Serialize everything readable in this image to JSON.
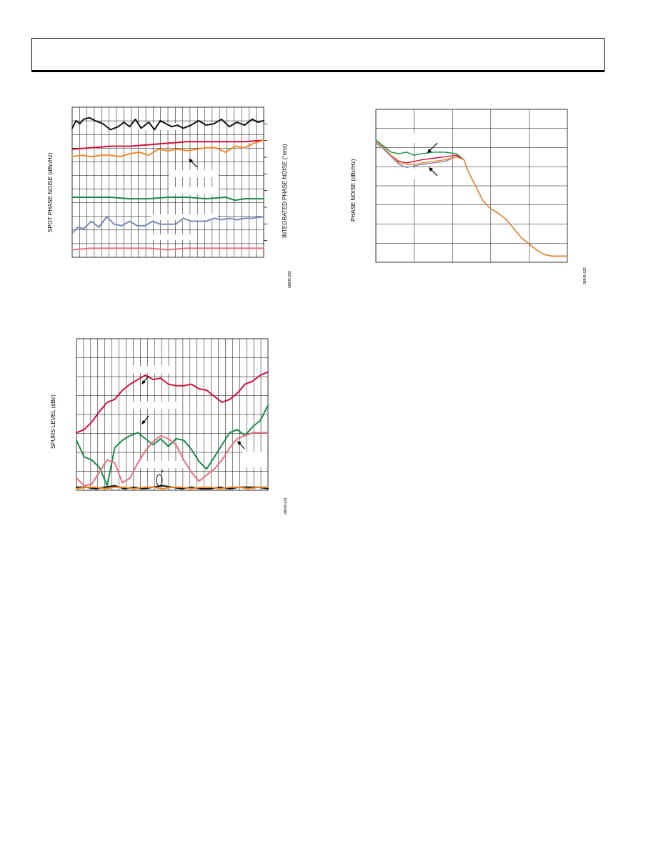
{
  "page": {
    "header_text": ""
  },
  "charts": [
    {
      "id": "chart1",
      "ylabel_left": "SPOT PHASE NOISE (dBc/Hz)",
      "ylabel_right": "INTEGRATED PHASE NOISE (°rms)",
      "figure_id": "08845-020"
    },
    {
      "id": "chart2",
      "ylabel": "PHASE NOISE (dBc/Hz)",
      "figure_id": "08845-022"
    },
    {
      "id": "chart3",
      "ylabel": "SPURS LEVEL (dBc)",
      "figure_id": "08845-021"
    }
  ],
  "chart_data": [
    {
      "type": "line",
      "title": "",
      "xlabel": "",
      "ylabel": "SPOT PHASE NOISE (dBc/Hz)",
      "ylabel_right": "INTEGRATED PHASE NOISE (°rms)",
      "xlim": [
        0,
        100
      ],
      "ylim": [
        0,
        100
      ],
      "grid": true,
      "colors": {
        "black": "#111111",
        "red": "#d0103a",
        "orange": "#f08a2a",
        "green": "#1a8a4a",
        "blue": "#7a8ab8",
        "pink": "#e8707e"
      },
      "series": [
        {
          "color": "#111111",
          "x": [
            0,
            2,
            4,
            6,
            9,
            12,
            16,
            20,
            24,
            27,
            30,
            33,
            36,
            40,
            43,
            46,
            49,
            52,
            55,
            58,
            62,
            66,
            70,
            74,
            78,
            82,
            86,
            90,
            94,
            97,
            100
          ],
          "y": [
            86,
            91,
            89,
            92,
            93,
            91,
            89,
            85,
            87,
            90,
            87,
            92,
            86,
            90,
            85,
            91,
            89,
            87,
            88,
            86,
            88,
            91,
            88,
            89,
            92,
            87,
            90,
            88,
            92,
            90,
            91
          ]
        },
        {
          "color": "#d0103a",
          "x": [
            0,
            10,
            20,
            30,
            40,
            50,
            60,
            70,
            80,
            90,
            100
          ],
          "y": [
            72,
            73,
            74,
            74,
            75,
            76,
            77,
            77,
            77,
            77,
            78
          ]
        },
        {
          "color": "#f08a2a",
          "x": [
            0,
            5,
            10,
            15,
            20,
            25,
            30,
            35,
            40,
            45,
            50,
            55,
            60,
            65,
            70,
            75,
            80,
            85,
            90,
            95,
            100
          ],
          "y": [
            67,
            68,
            67,
            68,
            68,
            67,
            69,
            70,
            68,
            72,
            71,
            72,
            71,
            72,
            73,
            73,
            70,
            74,
            73,
            76,
            78
          ]
        },
        {
          "color": "#1a8a4a",
          "x": [
            0,
            10,
            20,
            30,
            40,
            50,
            60,
            70,
            80,
            85,
            90,
            100
          ],
          "y": [
            40,
            40,
            40,
            39,
            39,
            40,
            40,
            39,
            40,
            38,
            39,
            39
          ]
        },
        {
          "color": "#7a8ab8",
          "x": [
            0,
            3,
            6,
            10,
            14,
            18,
            22,
            26,
            30,
            34,
            38,
            42,
            46,
            50,
            54,
            58,
            62,
            66,
            70,
            74,
            78,
            82,
            86,
            90,
            94,
            100
          ],
          "y": [
            16,
            20,
            19,
            24,
            20,
            27,
            22,
            21,
            24,
            21,
            21,
            24,
            22,
            22,
            22,
            26,
            24,
            24,
            24,
            26,
            25,
            26,
            25,
            26,
            26,
            27
          ]
        },
        {
          "color": "#e8707e",
          "x": [
            0,
            10,
            20,
            30,
            40,
            50,
            60,
            70,
            80,
            90,
            100
          ],
          "y": [
            5,
            6,
            6,
            6,
            6,
            5,
            6,
            6,
            6,
            6,
            6
          ]
        }
      ]
    },
    {
      "type": "line",
      "title": "",
      "xlabel": "",
      "ylabel": "PHASE NOISE (dBc/Hz)",
      "xlim": [
        0,
        100
      ],
      "ylim": [
        0,
        100
      ],
      "grid": true,
      "series": [
        {
          "color": "#1a8a4a",
          "x": [
            0,
            4,
            8,
            12,
            16,
            20,
            24,
            30,
            36,
            42,
            46,
            48,
            52,
            56,
            60,
            64,
            68,
            72,
            76,
            80,
            84,
            88,
            92,
            96,
            100
          ],
          "y": [
            80,
            76,
            72,
            71,
            72,
            70,
            71,
            72,
            72,
            71,
            67,
            60,
            50,
            40,
            35,
            32,
            28,
            22,
            16,
            12,
            8,
            5,
            4,
            4,
            4
          ]
        },
        {
          "color": "#d0103a",
          "x": [
            0,
            4,
            8,
            12,
            16,
            20,
            24,
            30,
            36,
            42,
            46,
            48,
            52,
            56,
            60,
            64,
            68,
            72,
            76,
            80,
            84,
            88,
            92,
            96,
            100
          ],
          "y": [
            79,
            75,
            70,
            66,
            65,
            66,
            67,
            68,
            69,
            70,
            67,
            60,
            50,
            40,
            35,
            32,
            28,
            22,
            16,
            12,
            8,
            5,
            4,
            4,
            4
          ]
        },
        {
          "color": "#7a8ab8",
          "x": [
            0,
            4,
            8,
            12,
            16,
            20,
            24,
            30,
            36,
            42,
            46,
            48,
            52,
            56,
            60,
            64,
            68,
            72,
            76,
            80,
            84,
            88,
            92,
            96,
            100
          ],
          "y": [
            78,
            74,
            69,
            64,
            62,
            63,
            64,
            65,
            66,
            69,
            67,
            60,
            50,
            40,
            35,
            32,
            28,
            22,
            16,
            12,
            8,
            5,
            4,
            4,
            4
          ]
        },
        {
          "color": "#f08a2a",
          "x": [
            0,
            4,
            8,
            12,
            16,
            20,
            24,
            30,
            36,
            42,
            46,
            48,
            52,
            56,
            60,
            64,
            68,
            72,
            76,
            80,
            84,
            88,
            92,
            96,
            100
          ],
          "y": [
            79,
            75,
            70,
            65,
            64,
            64,
            65,
            66,
            67,
            69,
            67,
            60,
            50,
            40,
            35,
            32,
            28,
            22,
            16,
            12,
            8,
            5,
            4,
            4,
            4
          ]
        }
      ]
    },
    {
      "type": "line",
      "title": "",
      "xlabel": "",
      "ylabel": "SPURS LEVEL (dBc)",
      "xlim": [
        0,
        100
      ],
      "ylim": [
        0,
        100
      ],
      "grid": true,
      "series": [
        {
          "color": "#d0103a",
          "x": [
            0,
            4,
            8,
            12,
            16,
            20,
            24,
            28,
            32,
            36,
            40,
            44,
            48,
            52,
            56,
            60,
            64,
            68,
            72,
            76,
            80,
            84,
            88,
            92,
            96,
            100
          ],
          "y": [
            38,
            40,
            45,
            52,
            58,
            60,
            66,
            70,
            73,
            76,
            73,
            74,
            70,
            69,
            69,
            70,
            67,
            66,
            62,
            58,
            60,
            64,
            70,
            72,
            76,
            78
          ]
        },
        {
          "color": "#1a8a4a",
          "x": [
            0,
            4,
            8,
            12,
            16,
            20,
            24,
            28,
            32,
            36,
            40,
            44,
            48,
            52,
            56,
            60,
            64,
            68,
            72,
            76,
            80,
            84,
            88,
            92,
            96,
            100
          ],
          "y": [
            33,
            22,
            20,
            15,
            3,
            28,
            33,
            36,
            38,
            34,
            30,
            34,
            29,
            34,
            33,
            27,
            19,
            14,
            22,
            30,
            38,
            40,
            36,
            42,
            46,
            56
          ]
        },
        {
          "color": "#e8707e",
          "x": [
            0,
            4,
            8,
            12,
            16,
            20,
            24,
            28,
            32,
            36,
            40,
            44,
            48,
            52,
            56,
            60,
            64,
            68,
            72,
            76,
            80,
            84,
            88,
            92,
            96,
            100
          ],
          "y": [
            8,
            3,
            4,
            12,
            20,
            18,
            5,
            8,
            18,
            26,
            32,
            36,
            34,
            30,
            20,
            12,
            6,
            10,
            14,
            20,
            28,
            34,
            36,
            38,
            38,
            38
          ]
        },
        {
          "color": "#111111",
          "x": [
            0,
            5,
            10,
            15,
            20,
            25,
            30,
            35,
            40,
            45,
            50,
            55,
            60,
            65,
            70,
            75,
            80,
            85,
            90,
            95,
            100
          ],
          "y": [
            2,
            2,
            1,
            2,
            3,
            1,
            2,
            1,
            2,
            3,
            2,
            1,
            2,
            1,
            1,
            2,
            1,
            2,
            2,
            2,
            1
          ]
        },
        {
          "color": "#f08a2a",
          "x": [
            0,
            5,
            10,
            15,
            20,
            25,
            30,
            35,
            40,
            45,
            50,
            55,
            60,
            65,
            70,
            75,
            80,
            85,
            90,
            95,
            100
          ],
          "y": [
            1,
            2,
            2,
            1,
            2,
            2,
            1,
            2,
            2,
            1,
            2,
            2,
            1,
            2,
            2,
            1,
            2,
            2,
            1,
            2,
            2
          ]
        }
      ]
    }
  ]
}
